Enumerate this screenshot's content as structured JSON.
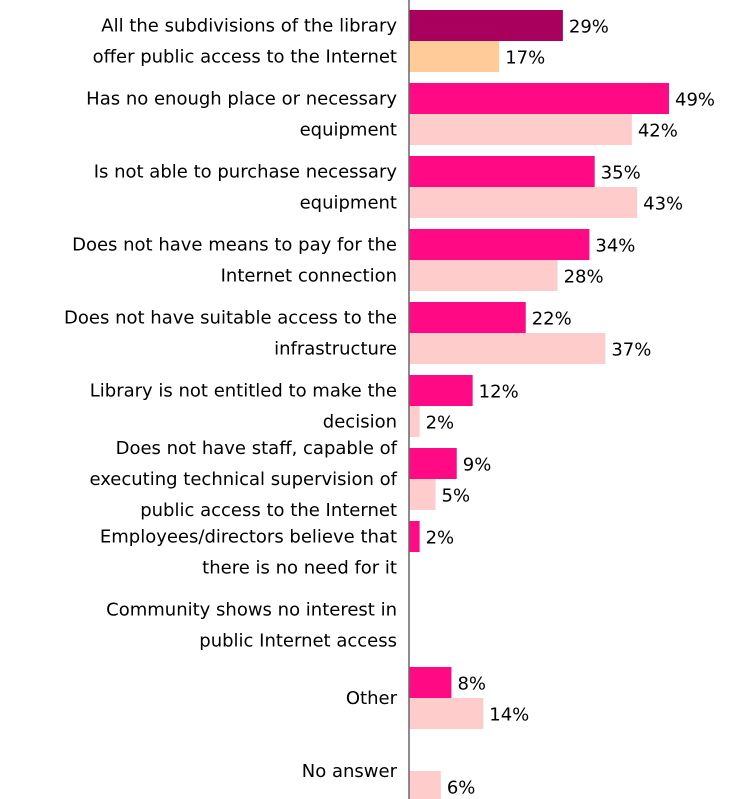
{
  "chart_data": {
    "type": "bar",
    "orientation": "horizontal",
    "xlim": [
      0,
      50
    ],
    "grid": false,
    "legend": "none",
    "value_suffix": "%",
    "categories": [
      [
        "All the subdivisions of the library",
        "offer public access to the Internet"
      ],
      [
        "Has no enough place or necessary",
        "equipment"
      ],
      [
        "Is not able to purchase necessary",
        "equipment"
      ],
      [
        "Does not have means to pay for the",
        "Internet connection"
      ],
      [
        "Does not have suitable access to the",
        "infrastructure"
      ],
      [
        "Library is not entitled to make the",
        "decision"
      ],
      [
        "Does not have staff, capable of",
        "executing technical supervision of",
        "public access to the Internet"
      ],
      [
        "Employees/directors believe that",
        "there is no need for it"
      ],
      [
        "Community shows no interest in",
        "public Internet access"
      ],
      [
        "Other"
      ],
      [
        "No answer"
      ]
    ],
    "series": [
      {
        "values": [
          29,
          49,
          35,
          34,
          22,
          12,
          9,
          2,
          null,
          8,
          null
        ],
        "color": "#ff0a84",
        "first_color": "#a8005c"
      },
      {
        "values": [
          17,
          42,
          43,
          28,
          37,
          2,
          5,
          null,
          null,
          14,
          6
        ],
        "color": "#ffcccc",
        "first_color": "#ffcc99"
      }
    ]
  }
}
